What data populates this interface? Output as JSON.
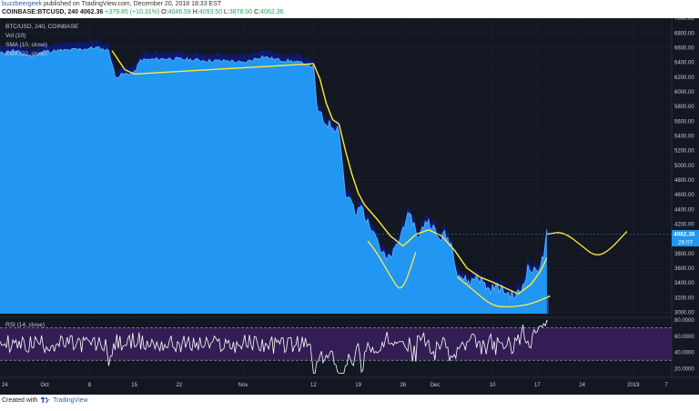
{
  "header": {
    "author": "buzzbeergeek",
    "published": "published on TradingView.com, December 20, 2018 18:33 EST",
    "symbol": "COINBASE:BTCUSD, 240",
    "last": "4062.36",
    "change": "+379.85 (+10.31%)",
    "o_label": "O:",
    "o_value": "4046.59",
    "h_label": "H:",
    "h_value": "4093.50",
    "l_label": "L:",
    "l_value": "3878.00",
    "c_label": "C:",
    "c_value": "4062.36"
  },
  "legend": {
    "title": "BTC/USD, 240, COINBASE",
    "vol": "Vol (10)",
    "sma": "SMA (10, close)",
    "ema": "EMA (22, close)"
  },
  "rsi_label": "RSI (14, close)",
  "price_label": "4062.36",
  "countdown_label": "26:07",
  "footer": {
    "prefix": "Created with",
    "brand": "TradingView"
  },
  "colors": {
    "price_fill": "#2196f3",
    "dark_fill": "#0d1a70",
    "ema": "#ffeb3b",
    "projection": "#ffeb3b",
    "rsi_line": "#ffffff",
    "rsi_band": "#3a1f5e",
    "background": "#131722",
    "axis_text": "#c8ccd4"
  },
  "chart_data": {
    "type": "area",
    "title": "BTC/USD, 240, COINBASE",
    "y_axis": {
      "ticks": [
        "7000.00",
        "6800.00",
        "6600.00",
        "6400.00",
        "6200.00",
        "6000.00",
        "5800.00",
        "5600.00",
        "5400.00",
        "5200.00",
        "5000.00",
        "4800.00",
        "4600.00",
        "4400.00",
        "4200.00",
        "4000.00",
        "3800.00",
        "3600.00",
        "3400.00",
        "3200.00",
        "3000.00"
      ],
      "range": [
        2980,
        7000
      ]
    },
    "x_axis": {
      "ticks": [
        "24",
        "Oct",
        "8",
        "15",
        "22",
        "Nov",
        "12",
        "19",
        "26",
        "Dec",
        "10",
        "17",
        "24",
        "2019",
        "7"
      ],
      "day_range": [
        -7,
        98
      ]
    },
    "price_series": [
      {
        "day": -7,
        "value": 6520
      },
      {
        "day": -5,
        "value": 6560
      },
      {
        "day": -2,
        "value": 6480
      },
      {
        "day": 0,
        "value": 6550
      },
      {
        "day": 3,
        "value": 6560
      },
      {
        "day": 6,
        "value": 6580
      },
      {
        "day": 8,
        "value": 6600
      },
      {
        "day": 10,
        "value": 6560
      },
      {
        "day": 11,
        "value": 6200
      },
      {
        "day": 12,
        "value": 6230
      },
      {
        "day": 14,
        "value": 6260
      },
      {
        "day": 15,
        "value": 6430
      },
      {
        "day": 19,
        "value": 6450
      },
      {
        "day": 22,
        "value": 6440
      },
      {
        "day": 26,
        "value": 6420
      },
      {
        "day": 29,
        "value": 6420
      },
      {
        "day": 31,
        "value": 6390
      },
      {
        "day": 34,
        "value": 6480
      },
      {
        "day": 36,
        "value": 6440
      },
      {
        "day": 39,
        "value": 6410
      },
      {
        "day": 41,
        "value": 6370
      },
      {
        "day": 42,
        "value": 6340
      },
      {
        "day": 42.5,
        "value": 5800
      },
      {
        "day": 43.5,
        "value": 5600
      },
      {
        "day": 44.5,
        "value": 5550
      },
      {
        "day": 46,
        "value": 5500
      },
      {
        "day": 47,
        "value": 4600
      },
      {
        "day": 48,
        "value": 4500
      },
      {
        "day": 48.5,
        "value": 4300
      },
      {
        "day": 49.5,
        "value": 4450
      },
      {
        "day": 50.5,
        "value": 4200
      },
      {
        "day": 51.5,
        "value": 4150
      },
      {
        "day": 52.5,
        "value": 3850
      },
      {
        "day": 53.5,
        "value": 3700
      },
      {
        "day": 54.5,
        "value": 3800
      },
      {
        "day": 55.5,
        "value": 4000
      },
      {
        "day": 56.5,
        "value": 4300
      },
      {
        "day": 57.5,
        "value": 4250
      },
      {
        "day": 58.5,
        "value": 4000
      },
      {
        "day": 59.5,
        "value": 4250
      },
      {
        "day": 60.5,
        "value": 4200
      },
      {
        "day": 61.5,
        "value": 4000
      },
      {
        "day": 62.5,
        "value": 4050
      },
      {
        "day": 63.5,
        "value": 3950
      },
      {
        "day": 64.5,
        "value": 3550
      },
      {
        "day": 65.5,
        "value": 3450
      },
      {
        "day": 66.5,
        "value": 3400
      },
      {
        "day": 67.5,
        "value": 3500
      },
      {
        "day": 68.5,
        "value": 3400
      },
      {
        "day": 69.5,
        "value": 3300
      },
      {
        "day": 70.5,
        "value": 3350
      },
      {
        "day": 71.5,
        "value": 3300
      },
      {
        "day": 72.5,
        "value": 3250
      },
      {
        "day": 73.5,
        "value": 3220
      },
      {
        "day": 74.5,
        "value": 3300
      },
      {
        "day": 75.5,
        "value": 3600
      },
      {
        "day": 76.5,
        "value": 3550
      },
      {
        "day": 77.5,
        "value": 3650
      },
      {
        "day": 78,
        "value": 3760
      },
      {
        "day": 78.5,
        "value": 4062
      }
    ],
    "ema_series": [
      {
        "day": 10.5,
        "value": 6560
      },
      {
        "day": 12.5,
        "value": 6300
      },
      {
        "day": 14,
        "value": 6240
      },
      {
        "day": 42,
        "value": 6380
      },
      {
        "day": 43,
        "value": 6180
      },
      {
        "day": 44,
        "value": 5840
      },
      {
        "day": 45,
        "value": 5620
      },
      {
        "day": 46,
        "value": 5560
      },
      {
        "day": 47,
        "value": 5200
      },
      {
        "day": 48,
        "value": 4880
      },
      {
        "day": 49,
        "value": 4620
      },
      {
        "day": 50,
        "value": 4460
      },
      {
        "day": 52,
        "value": 4260
      },
      {
        "day": 54,
        "value": 4040
      },
      {
        "day": 56,
        "value": 3900
      },
      {
        "day": 58,
        "value": 4060
      },
      {
        "day": 60,
        "value": 4120
      },
      {
        "day": 62,
        "value": 4040
      },
      {
        "day": 64,
        "value": 3850
      },
      {
        "day": 66,
        "value": 3600
      },
      {
        "day": 68,
        "value": 3480
      },
      {
        "day": 70,
        "value": 3410
      },
      {
        "day": 72,
        "value": 3330
      },
      {
        "day": 74,
        "value": 3250
      },
      {
        "day": 76,
        "value": 3380
      },
      {
        "day": 77.5,
        "value": 3560
      },
      {
        "day": 78.5,
        "value": 3740
      }
    ],
    "drawings": [
      {
        "name": "arc-1",
        "points": [
          {
            "day": 50.5,
            "value": 3970
          },
          {
            "day": 52,
            "value": 3800
          },
          {
            "day": 54.5,
            "value": 3420
          },
          {
            "day": 55.5,
            "value": 3300
          },
          {
            "day": 56.5,
            "value": 3420
          },
          {
            "day": 58,
            "value": 3820
          }
        ]
      },
      {
        "name": "arc-2",
        "points": [
          {
            "day": 64.5,
            "value": 3480
          },
          {
            "day": 67,
            "value": 3300
          },
          {
            "day": 70,
            "value": 3080
          },
          {
            "day": 73,
            "value": 3070
          },
          {
            "day": 76,
            "value": 3110
          },
          {
            "day": 79,
            "value": 3220
          }
        ]
      },
      {
        "name": "projection",
        "points": [
          {
            "day": 78.5,
            "value": 4060
          },
          {
            "day": 81,
            "value": 4100
          },
          {
            "day": 84,
            "value": 3900
          },
          {
            "day": 86,
            "value": 3760
          },
          {
            "day": 88,
            "value": 3820
          },
          {
            "day": 91,
            "value": 4100
          }
        ]
      }
    ],
    "rsi": {
      "ticks": [
        "80.0000",
        "60.0000",
        "40.0000",
        "20.0000"
      ],
      "range": [
        10,
        82
      ],
      "band": [
        30,
        70
      ],
      "last": 77
    }
  }
}
